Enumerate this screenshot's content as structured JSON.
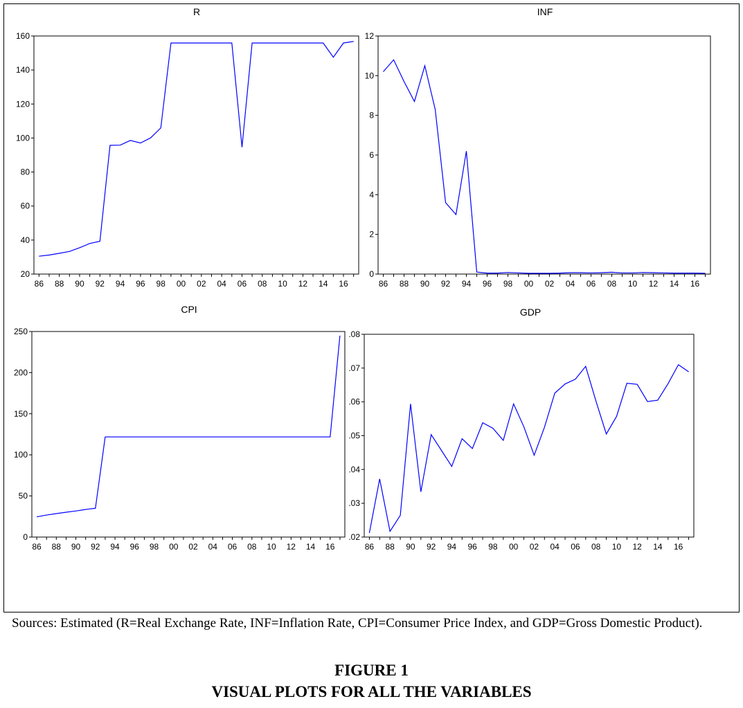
{
  "figure": {
    "label": "FIGURE 1",
    "title": "VISUAL PLOTS FOR ALL THE VARIABLES",
    "caption": "Sources: Estimated (R=Real Exchange Rate, INF=Inflation Rate, CPI=Consumer Price Index, and GDP=Gross Domestic Product)."
  },
  "chart_data": [
    {
      "id": "r",
      "type": "line",
      "title": "R",
      "xlabel": "",
      "ylabel": "",
      "color": "#0000ff",
      "xlim": [
        1985.5,
        2017.5
      ],
      "ylim": [
        20,
        160
      ],
      "y_ticks": [
        20,
        40,
        60,
        80,
        100,
        120,
        140,
        160
      ],
      "y_tick_labels": [
        "20",
        "40",
        "60",
        "80",
        "100",
        "120",
        "140",
        "160"
      ],
      "x_ticks": [
        1986,
        1988,
        1990,
        1992,
        1994,
        1996,
        1998,
        2000,
        2002,
        2004,
        2006,
        2008,
        2010,
        2012,
        2014,
        2016
      ],
      "x_tick_labels": [
        "86",
        "88",
        "90",
        "92",
        "94",
        "96",
        "98",
        "00",
        "02",
        "04",
        "06",
        "08",
        "10",
        "12",
        "14",
        "16"
      ],
      "x": [
        1986,
        1987,
        1988,
        1989,
        1990,
        1991,
        1992,
        1993,
        1994,
        1995,
        1996,
        1997,
        1998,
        1999,
        2000,
        2001,
        2002,
        2003,
        2004,
        2005,
        2006,
        2007,
        2008,
        2009,
        2010,
        2011,
        2012,
        2013,
        2014,
        2015,
        2016,
        2017
      ],
      "y": [
        30.5,
        31.2,
        32.2,
        33.3,
        35.5,
        38,
        39.3,
        95.7,
        95.8,
        98.6,
        97.1,
        100.1,
        105.9,
        155.9,
        155.9,
        155.9,
        155.9,
        155.9,
        155.9,
        155.9,
        94.6,
        155.9,
        155.9,
        155.9,
        155.9,
        155.9,
        155.9,
        155.9,
        155.9,
        147.5,
        155.9,
        156.8
      ]
    },
    {
      "id": "inf",
      "type": "line",
      "title": "INF",
      "xlabel": "",
      "ylabel": "",
      "color": "#0000ff",
      "xlim": [
        1985.5,
        2017.5
      ],
      "ylim": [
        0,
        12
      ],
      "y_ticks": [
        0,
        2,
        4,
        6,
        8,
        10,
        12
      ],
      "y_tick_labels": [
        "0",
        "2",
        "4",
        "6",
        "8",
        "10",
        "12"
      ],
      "x_ticks": [
        1986,
        1988,
        1990,
        1992,
        1994,
        1996,
        1998,
        2000,
        2002,
        2004,
        2006,
        2008,
        2010,
        2012,
        2014,
        2016
      ],
      "x_tick_labels": [
        "86",
        "88",
        "90",
        "92",
        "94",
        "96",
        "98",
        "00",
        "02",
        "04",
        "06",
        "08",
        "10",
        "12",
        "14",
        "16"
      ],
      "x": [
        1986,
        1987,
        1988,
        1989,
        1990,
        1991,
        1992,
        1993,
        1994,
        1995,
        1996,
        1997,
        1998,
        1999,
        2000,
        2001,
        2002,
        2003,
        2004,
        2005,
        2006,
        2007,
        2008,
        2009,
        2010,
        2011,
        2012,
        2013,
        2014,
        2015,
        2016,
        2017
      ],
      "y": [
        10.2,
        10.8,
        9.7,
        8.7,
        10.5,
        8.3,
        3.6,
        3.0,
        6.2,
        0.1,
        0.05,
        0.05,
        0.08,
        0.06,
        0.04,
        0.04,
        0.04,
        0.05,
        0.07,
        0.07,
        0.06,
        0.07,
        0.09,
        0.06,
        0.06,
        0.08,
        0.07,
        0.06,
        0.05,
        0.05,
        0.05,
        0.04
      ]
    },
    {
      "id": "cpi",
      "type": "line",
      "title": "CPI",
      "xlabel": "",
      "ylabel": "",
      "color": "#0000ff",
      "xlim": [
        1985.5,
        2017.5
      ],
      "ylim": [
        0,
        250
      ],
      "y_ticks": [
        0,
        50,
        100,
        150,
        200,
        250
      ],
      "y_tick_labels": [
        "0",
        "50",
        "100",
        "150",
        "200",
        "250"
      ],
      "x_ticks": [
        1986,
        1988,
        1990,
        1992,
        1994,
        1996,
        1998,
        2000,
        2002,
        2004,
        2006,
        2008,
        2010,
        2012,
        2014,
        2016
      ],
      "x_tick_labels": [
        "86",
        "88",
        "90",
        "92",
        "94",
        "96",
        "98",
        "00",
        "02",
        "04",
        "06",
        "08",
        "10",
        "12",
        "14",
        "16"
      ],
      "x": [
        1986,
        1987,
        1988,
        1989,
        1990,
        1991,
        1992,
        1993,
        1994,
        1995,
        1996,
        1997,
        1998,
        1999,
        2000,
        2001,
        2002,
        2003,
        2004,
        2005,
        2006,
        2007,
        2008,
        2009,
        2010,
        2011,
        2012,
        2013,
        2014,
        2015,
        2016,
        2017
      ],
      "y": [
        24.6,
        26.8,
        28.5,
        30.2,
        31.7,
        33.6,
        35,
        121.8,
        121.8,
        121.8,
        121.8,
        121.8,
        121.8,
        121.8,
        121.8,
        121.8,
        121.8,
        121.8,
        121.8,
        121.8,
        121.8,
        121.8,
        121.8,
        121.8,
        121.8,
        121.8,
        121.8,
        121.8,
        121.8,
        121.8,
        121.8,
        245
      ]
    },
    {
      "id": "gdp",
      "type": "line",
      "title": "GDP",
      "xlabel": "",
      "ylabel": "",
      "color": "#0000ff",
      "xlim": [
        1985.5,
        2017.5
      ],
      "ylim": [
        0.02,
        0.08
      ],
      "y_ticks": [
        0.02,
        0.03,
        0.04,
        0.05,
        0.06,
        0.07,
        0.08
      ],
      "y_tick_labels": [
        ".02",
        ".03",
        ".04",
        ".05",
        ".06",
        ".07",
        ".08"
      ],
      "x_ticks": [
        1986,
        1988,
        1990,
        1992,
        1994,
        1996,
        1998,
        2000,
        2002,
        2004,
        2006,
        2008,
        2010,
        2012,
        2014,
        2016
      ],
      "x_tick_labels": [
        "86",
        "88",
        "90",
        "92",
        "94",
        "96",
        "98",
        "00",
        "02",
        "04",
        "06",
        "08",
        "10",
        "12",
        "14",
        "16"
      ],
      "x": [
        1986,
        1987,
        1988,
        1989,
        1990,
        1991,
        1992,
        1993,
        1994,
        1995,
        1996,
        1997,
        1998,
        1999,
        2000,
        2001,
        2002,
        2003,
        2004,
        2005,
        2006,
        2007,
        2008,
        2009,
        2010,
        2011,
        2012,
        2013,
        2014,
        2015,
        2016,
        2017
      ],
      "y": [
        0.0212,
        0.0372,
        0.0217,
        0.0264,
        0.0594,
        0.0334,
        0.0503,
        0.0456,
        0.0409,
        0.0491,
        0.0462,
        0.0538,
        0.0522,
        0.0486,
        0.0594,
        0.0526,
        0.0442,
        0.0525,
        0.0626,
        0.0653,
        0.0667,
        0.0705,
        0.0602,
        0.0505,
        0.0557,
        0.0655,
        0.0652,
        0.0601,
        0.0605,
        0.0654,
        0.071,
        0.0689
      ]
    }
  ]
}
